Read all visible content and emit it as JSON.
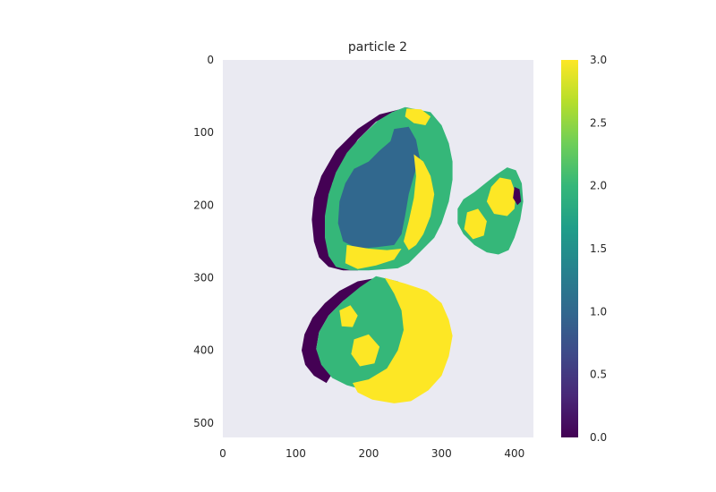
{
  "chart_data": {
    "type": "heatmap",
    "title": "particle 2",
    "xlabel": "",
    "ylabel": "",
    "x_range": [
      0,
      426
    ],
    "y_range": [
      0,
      520
    ],
    "y_inverted": true,
    "x_ticks": [
      "0",
      "100",
      "200",
      "300",
      "400"
    ],
    "x_tick_values": [
      0,
      100,
      200,
      300,
      400
    ],
    "y_ticks": [
      "0",
      "100",
      "200",
      "300",
      "400",
      "500"
    ],
    "y_tick_values": [
      0,
      100,
      200,
      300,
      400,
      500
    ],
    "grid": false,
    "background_color": "#eaeaf2",
    "colormap": "viridis",
    "color_range": [
      0.0,
      3.0
    ],
    "colorbar_ticks": [
      "0.0",
      "0.5",
      "1.0",
      "1.5",
      "2.0",
      "2.5",
      "3.0"
    ],
    "colorbar_tick_values": [
      0.0,
      0.5,
      1.0,
      1.5,
      2.0,
      2.5,
      3.0
    ],
    "regions": [
      {
        "name": "upper-left particle",
        "value_layers": [
          {
            "value": 0,
            "polygon": [
              [
                255,
                65
              ],
              [
                215,
                75
              ],
              [
                185,
                95
              ],
              [
                155,
                125
              ],
              [
                135,
                160
              ],
              [
                125,
                190
              ],
              [
                122,
                220
              ],
              [
                125,
                250
              ],
              [
                132,
                272
              ],
              [
                145,
                285
              ],
              [
                165,
                290
              ],
              [
                185,
                290
              ],
              [
                200,
                280
              ],
              [
                185,
                270
              ],
              [
                165,
                255
              ],
              [
                150,
                230
              ],
              [
                145,
                200
              ],
              [
                150,
                170
              ],
              [
                165,
                140
              ],
              [
                185,
                110
              ],
              [
                210,
                85
              ],
              [
                240,
                70
              ]
            ]
          },
          {
            "value": 2,
            "polygon": [
              [
                250,
                65
              ],
              [
                285,
                72
              ],
              [
                300,
                90
              ],
              [
                310,
                115
              ],
              [
                315,
                140
              ],
              [
                315,
                165
              ],
              [
                310,
                195
              ],
              [
                300,
                225
              ],
              [
                290,
                245
              ],
              [
                270,
                265
              ],
              [
                255,
                280
              ],
              [
                240,
                287
              ],
              [
                200,
                290
              ],
              [
                175,
                290
              ],
              [
                155,
                285
              ],
              [
                145,
                270
              ],
              [
                140,
                245
              ],
              [
                140,
                215
              ],
              [
                145,
                185
              ],
              [
                155,
                155
              ],
              [
                170,
                128
              ],
              [
                190,
                105
              ],
              [
                212,
                84
              ],
              [
                232,
                72
              ]
            ]
          },
          {
            "value": 1,
            "polygon": [
              [
                235,
                95
              ],
              [
                255,
                92
              ],
              [
                265,
                110
              ],
              [
                270,
                135
              ],
              [
                262,
                160
              ],
              [
                255,
                185
              ],
              [
                250,
                215
              ],
              [
                245,
                240
              ],
              [
                235,
                255
              ],
              [
                210,
                258
              ],
              [
                185,
                260
              ],
              [
                165,
                250
              ],
              [
                158,
                225
              ],
              [
                160,
                195
              ],
              [
                168,
                170
              ],
              [
                180,
                150
              ],
              [
                200,
                140
              ],
              [
                215,
                125
              ],
              [
                230,
                112
              ]
            ]
          },
          {
            "value": 3,
            "polygon": [
              [
                262,
                130
              ],
              [
                275,
                140
              ],
              [
                285,
                160
              ],
              [
                290,
                185
              ],
              [
                285,
                215
              ],
              [
                275,
                240
              ],
              [
                265,
                255
              ],
              [
                255,
                262
              ],
              [
                248,
                250
              ],
              [
                255,
                222
              ],
              [
                262,
                190
              ],
              [
                265,
                160
              ]
            ]
          },
          {
            "value": 3,
            "polygon": [
              [
                170,
                255
              ],
              [
                200,
                260
              ],
              [
                225,
                262
              ],
              [
                245,
                260
              ],
              [
                235,
                275
              ],
              [
                210,
                283
              ],
              [
                185,
                288
              ],
              [
                168,
                280
              ]
            ]
          },
          {
            "value": 3,
            "polygon": [
              [
                252,
                67
              ],
              [
                272,
                68
              ],
              [
                285,
                78
              ],
              [
                278,
                90
              ],
              [
                262,
                87
              ],
              [
                250,
                78
              ]
            ]
          }
        ]
      },
      {
        "name": "right particle",
        "value_layers": [
          {
            "value": 2,
            "polygon": [
              [
                390,
                148
              ],
              [
                402,
                152
              ],
              [
                410,
                170
              ],
              [
                412,
                195
              ],
              [
                408,
                220
              ],
              [
                400,
                245
              ],
              [
                392,
                262
              ],
              [
                378,
                268
              ],
              [
                362,
                265
              ],
              [
                345,
                255
              ],
              [
                330,
                240
              ],
              [
                322,
                225
              ],
              [
                322,
                205
              ],
              [
                330,
                192
              ],
              [
                345,
                182
              ],
              [
                360,
                170
              ],
              [
                375,
                158
              ]
            ]
          },
          {
            "value": 3,
            "polygon": [
              [
                380,
                162
              ],
              [
                395,
                165
              ],
              [
                402,
                185
              ],
              [
                400,
                205
              ],
              [
                390,
                215
              ],
              [
                372,
                212
              ],
              [
                362,
                195
              ],
              [
                368,
                175
              ]
            ]
          },
          {
            "value": 3,
            "polygon": [
              [
                335,
                210
              ],
              [
                350,
                205
              ],
              [
                362,
                222
              ],
              [
                358,
                242
              ],
              [
                343,
                247
              ],
              [
                331,
                233
              ]
            ]
          },
          {
            "value": 0,
            "polygon": [
              [
                400,
                175
              ],
              [
                407,
                178
              ],
              [
                409,
                195
              ],
              [
                404,
                200
              ],
              [
                398,
                190
              ]
            ]
          }
        ]
      },
      {
        "name": "lower particle",
        "value_layers": [
          {
            "value": 0,
            "polygon": [
              [
                212,
                300
              ],
              [
                185,
                305
              ],
              [
                160,
                318
              ],
              [
                140,
                335
              ],
              [
                123,
                355
              ],
              [
                112,
                378
              ],
              [
                108,
                400
              ],
              [
                113,
                420
              ],
              [
                125,
                435
              ],
              [
                142,
                445
              ],
              [
                150,
                432
              ],
              [
                135,
                418
              ],
              [
                128,
                398
              ],
              [
                132,
                375
              ],
              [
                145,
                352
              ],
              [
                165,
                332
              ],
              [
                190,
                315
              ]
            ]
          },
          {
            "value": 2,
            "polygon": [
              [
                210,
                298
              ],
              [
                240,
                305
              ],
              [
                262,
                318
              ],
              [
                270,
                340
              ],
              [
                262,
                370
              ],
              [
                252,
                400
              ],
              [
                242,
                430
              ],
              [
                222,
                452
              ],
              [
                195,
                455
              ],
              [
                170,
                448
              ],
              [
                150,
                438
              ],
              [
                135,
                420
              ],
              [
                128,
                398
              ],
              [
                132,
                375
              ],
              [
                145,
                352
              ],
              [
                165,
                332
              ],
              [
                188,
                313
              ]
            ]
          },
          {
            "value": 3,
            "polygon": [
              [
                222,
                300
              ],
              [
                250,
                308
              ],
              [
                280,
                318
              ],
              [
                300,
                335
              ],
              [
                310,
                358
              ],
              [
                315,
                380
              ],
              [
                310,
                408
              ],
              [
                300,
                435
              ],
              [
                282,
                455
              ],
              [
                258,
                470
              ],
              [
                235,
                473
              ],
              [
                205,
                468
              ],
              [
                185,
                458
              ],
              [
                178,
                445
              ],
              [
                200,
                440
              ],
              [
                225,
                425
              ],
              [
                240,
                400
              ],
              [
                248,
                372
              ],
              [
                245,
                345
              ],
              [
                235,
                322
              ]
            ]
          },
          {
            "value": 3,
            "polygon": [
              [
                180,
                385
              ],
              [
                200,
                378
              ],
              [
                215,
                395
              ],
              [
                208,
                418
              ],
              [
                188,
                422
              ],
              [
                176,
                405
              ]
            ]
          },
          {
            "value": 3,
            "polygon": [
              [
                160,
                345
              ],
              [
                175,
                338
              ],
              [
                185,
                352
              ],
              [
                178,
                368
              ],
              [
                163,
                367
              ]
            ]
          }
        ]
      }
    ]
  }
}
